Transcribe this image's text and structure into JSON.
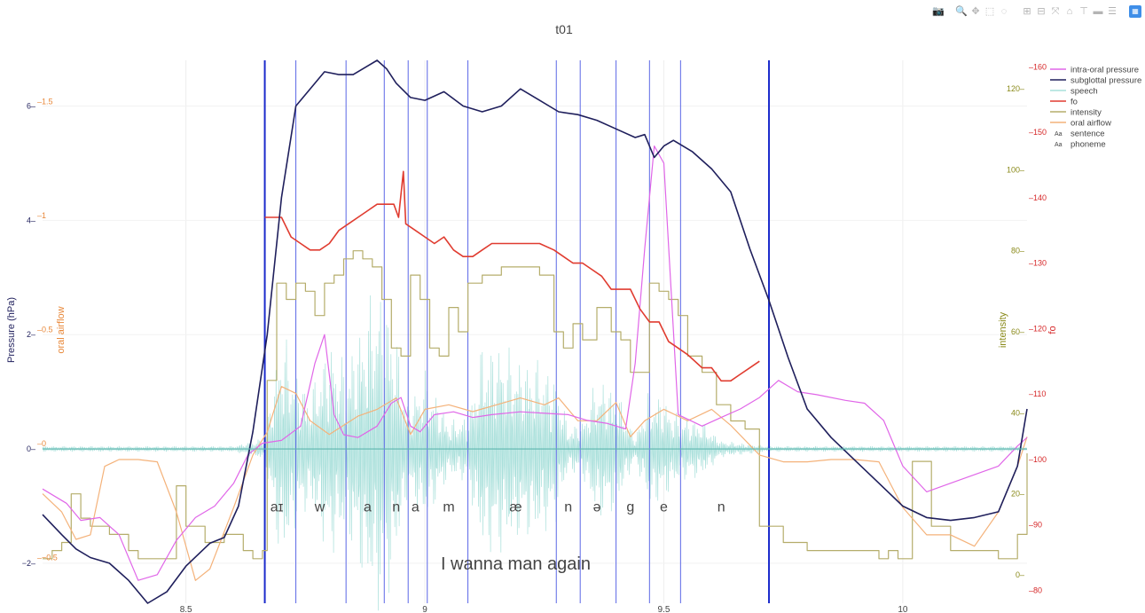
{
  "title": "t01",
  "modebar": [
    {
      "name": "camera-icon",
      "glyph": "📷"
    },
    {
      "name": "zoom-icon",
      "glyph": "🔍"
    },
    {
      "name": "pan-icon",
      "glyph": "✥"
    },
    {
      "name": "box-select-icon",
      "glyph": "⬚"
    },
    {
      "name": "lasso-select-icon",
      "glyph": "◌"
    },
    {
      "name": "zoom-in-icon",
      "glyph": "⊞"
    },
    {
      "name": "zoom-out-icon",
      "glyph": "⊟"
    },
    {
      "name": "autoscale-icon",
      "glyph": "⤧"
    },
    {
      "name": "reset-axes-icon",
      "glyph": "⌂"
    },
    {
      "name": "spike-lines-icon",
      "glyph": "⊤"
    },
    {
      "name": "hover-closest-icon",
      "glyph": "▬"
    },
    {
      "name": "hover-compare-icon",
      "glyph": "☰"
    },
    {
      "name": "plotly-logo-icon",
      "glyph": "▦"
    }
  ],
  "chart_data": {
    "type": "line",
    "title": "t01",
    "grid": true,
    "legend_position": "top-right",
    "x_axis": {
      "range": [
        8.2,
        10.26
      ],
      "ticks": [
        8.5,
        9,
        9.5,
        10
      ],
      "tick_labels": [
        "8.5",
        "9",
        "9.5",
        "10"
      ]
    },
    "y_axes": {
      "pressure": {
        "label": "Pressure (hPa)",
        "range": [
          -2.7,
          6.8
        ],
        "ticks": [
          -2,
          0,
          2,
          4,
          6
        ],
        "tick_labels": [
          "−2",
          "0",
          "2",
          "4",
          "6"
        ],
        "color": "#1f1f5c"
      },
      "oral_airflow": {
        "label": "oral airflow",
        "range": [
          -0.7,
          1.68
        ],
        "ticks": [
          -0.5,
          0,
          0.5,
          1,
          1.5
        ],
        "tick_labels": [
          "−0.5",
          "0",
          "0.5",
          "1",
          "1.5"
        ],
        "color": "#e8883a"
      },
      "intensity": {
        "label": "intensity",
        "range": [
          -7,
          127
        ],
        "ticks": [
          0,
          20,
          40,
          60,
          80,
          100,
          120
        ],
        "tick_labels": [
          "0",
          "20",
          "40",
          "60",
          "80",
          "100",
          "120"
        ],
        "color": "#8a8a1a"
      },
      "fo": {
        "label": "fo",
        "range": [
          78,
          161
        ],
        "ticks": [
          80,
          90,
          100,
          110,
          120,
          130,
          140,
          150,
          160
        ],
        "tick_labels": [
          "80",
          "90",
          "100",
          "110",
          "120",
          "130",
          "140",
          "150",
          "160"
        ],
        "color": "#d62728"
      }
    },
    "legend": [
      {
        "name": "intra-oral pressure",
        "color": "#e066e8",
        "kind": "line"
      },
      {
        "name": "subglottal pressure",
        "color": "#1f1f5c",
        "kind": "line"
      },
      {
        "name": "speech",
        "color": "#a8e0dc",
        "kind": "line"
      },
      {
        "name": "fo",
        "color": "#e03c30",
        "kind": "line"
      },
      {
        "name": "intensity",
        "color": "#b5ad6b",
        "kind": "line"
      },
      {
        "name": "oral airflow",
        "color": "#f4b27a",
        "kind": "line"
      },
      {
        "name": "sentence",
        "color": "#444444",
        "kind": "text",
        "glyph": "Aa"
      },
      {
        "name": "phoneme",
        "color": "#444444",
        "kind": "text",
        "glyph": "Aa"
      }
    ],
    "sentence": {
      "text": "I wanna man again",
      "x": 9.19,
      "y_pressure": -2.0
    },
    "phonemes": [
      {
        "label": "aɪ",
        "x": 8.69
      },
      {
        "label": "w",
        "x": 8.78
      },
      {
        "label": "a",
        "x": 8.88
      },
      {
        "label": "n",
        "x": 8.94
      },
      {
        "label": "a",
        "x": 8.98
      },
      {
        "label": "m",
        "x": 9.05
      },
      {
        "label": "æ",
        "x": 9.19
      },
      {
        "label": "n",
        "x": 9.3
      },
      {
        "label": "ə",
        "x": 9.36
      },
      {
        "label": "g",
        "x": 9.43
      },
      {
        "label": "e",
        "x": 9.5
      },
      {
        "label": "n",
        "x": 9.62
      }
    ],
    "phoneme_y_pressure": -1.0,
    "sentence_boundaries": [
      8.665,
      9.72
    ],
    "phoneme_boundaries": [
      8.73,
      8.835,
      8.915,
      8.965,
      9.005,
      9.09,
      9.275,
      9.325,
      9.4,
      9.47,
      9.535
    ],
    "series": {
      "subglottal_pressure": {
        "axis": "pressure",
        "x": [
          8.2,
          8.24,
          8.27,
          8.3,
          8.34,
          8.38,
          8.42,
          8.46,
          8.5,
          8.55,
          8.58,
          8.61,
          8.64,
          8.67,
          8.7,
          8.73,
          8.76,
          8.79,
          8.82,
          8.85,
          8.88,
          8.9,
          8.92,
          8.94,
          8.97,
          9.0,
          9.04,
          9.08,
          9.12,
          9.16,
          9.2,
          9.24,
          9.28,
          9.32,
          9.36,
          9.4,
          9.44,
          9.46,
          9.48,
          9.5,
          9.52,
          9.56,
          9.6,
          9.64,
          9.68,
          9.72,
          9.76,
          9.8,
          9.85,
          9.9,
          9.95,
          10.0,
          10.05,
          10.1,
          10.15,
          10.2,
          10.24,
          10.26
        ],
        "y": [
          -1.15,
          -1.5,
          -1.75,
          -1.9,
          -2.0,
          -2.3,
          -2.7,
          -2.5,
          -2.05,
          -1.65,
          -1.55,
          -1.0,
          0.3,
          2.0,
          4.4,
          6.0,
          6.3,
          6.6,
          6.55,
          6.55,
          6.7,
          6.8,
          6.65,
          6.4,
          6.15,
          6.1,
          6.25,
          6.0,
          5.9,
          6.0,
          6.3,
          6.1,
          5.9,
          5.85,
          5.75,
          5.6,
          5.45,
          5.5,
          5.1,
          5.3,
          5.4,
          5.2,
          4.9,
          4.5,
          3.5,
          2.6,
          1.6,
          0.7,
          0.2,
          -0.2,
          -0.6,
          -1.0,
          -1.2,
          -1.25,
          -1.2,
          -1.1,
          -0.3,
          0.7
        ]
      },
      "intra_oral_pressure": {
        "axis": "pressure",
        "x": [
          8.2,
          8.25,
          8.28,
          8.32,
          8.36,
          8.4,
          8.44,
          8.48,
          8.52,
          8.56,
          8.6,
          8.63,
          8.66,
          8.7,
          8.74,
          8.77,
          8.79,
          8.81,
          8.83,
          8.86,
          8.9,
          8.93,
          8.95,
          8.97,
          8.99,
          9.02,
          9.06,
          9.1,
          9.14,
          9.2,
          9.26,
          9.3,
          9.34,
          9.38,
          9.42,
          9.44,
          9.46,
          9.48,
          9.5,
          9.53,
          9.58,
          9.62,
          9.66,
          9.7,
          9.74,
          9.78,
          9.82,
          9.88,
          9.92,
          9.96,
          10.0,
          10.05,
          10.1,
          10.15,
          10.2,
          10.24,
          10.26
        ],
        "y": [
          -0.7,
          -0.95,
          -1.25,
          -1.2,
          -1.5,
          -2.3,
          -2.2,
          -1.6,
          -1.2,
          -1.0,
          -0.6,
          -0.1,
          0.1,
          0.15,
          0.4,
          1.5,
          2.0,
          0.6,
          0.25,
          0.2,
          0.4,
          0.8,
          0.9,
          0.4,
          0.3,
          0.6,
          0.65,
          0.55,
          0.6,
          0.65,
          0.62,
          0.6,
          0.5,
          0.45,
          0.35,
          1.5,
          3.5,
          5.3,
          5.0,
          0.6,
          0.4,
          0.55,
          0.7,
          0.9,
          1.2,
          1.0,
          0.95,
          0.85,
          0.8,
          0.5,
          -0.3,
          -0.75,
          -0.6,
          -0.45,
          -0.3,
          0.05,
          0.2
        ]
      },
      "oral_airflow": {
        "axis": "oral_airflow",
        "x": [
          8.2,
          8.24,
          8.27,
          8.3,
          8.33,
          8.36,
          8.4,
          8.44,
          8.48,
          8.52,
          8.55,
          8.6,
          8.64,
          8.67,
          8.7,
          8.73,
          8.76,
          8.8,
          8.83,
          8.86,
          8.9,
          8.94,
          8.97,
          9.0,
          9.05,
          9.1,
          9.15,
          9.2,
          9.25,
          9.28,
          9.32,
          9.36,
          9.4,
          9.43,
          9.46,
          9.5,
          9.55,
          9.6,
          9.64,
          9.7,
          9.75,
          9.8,
          9.85,
          9.9,
          9.95,
          9.98,
          10.0,
          10.05,
          10.1,
          10.15,
          10.2,
          10.24,
          10.26
        ],
        "y": [
          -0.22,
          -0.3,
          -0.42,
          -0.4,
          -0.1,
          -0.07,
          -0.07,
          -0.08,
          -0.3,
          -0.6,
          -0.55,
          -0.28,
          -0.05,
          0.05,
          0.25,
          0.22,
          0.1,
          0.04,
          0.08,
          0.12,
          0.15,
          0.2,
          0.04,
          0.15,
          0.17,
          0.14,
          0.17,
          0.2,
          0.17,
          0.2,
          0.1,
          0.1,
          0.18,
          0.03,
          0.1,
          0.15,
          0.1,
          0.15,
          0.08,
          -0.05,
          -0.08,
          -0.08,
          -0.07,
          -0.07,
          -0.08,
          -0.2,
          -0.28,
          -0.4,
          -0.4,
          -0.45,
          -0.3,
          -0.1,
          0.03
        ]
      },
      "intensity": {
        "axis": "intensity",
        "x": [
          8.2,
          8.22,
          8.24,
          8.26,
          8.28,
          8.3,
          8.34,
          8.38,
          8.4,
          8.42,
          8.44,
          8.46,
          8.48,
          8.5,
          8.54,
          8.58,
          8.62,
          8.64,
          8.66,
          8.67,
          8.69,
          8.71,
          8.73,
          8.75,
          8.77,
          8.79,
          8.81,
          8.83,
          8.85,
          8.87,
          8.89,
          8.91,
          8.93,
          8.95,
          8.97,
          8.99,
          9.01,
          9.03,
          9.05,
          9.07,
          9.09,
          9.12,
          9.16,
          9.2,
          9.24,
          9.27,
          9.29,
          9.31,
          9.33,
          9.36,
          9.39,
          9.41,
          9.43,
          9.45,
          9.47,
          9.49,
          9.51,
          9.53,
          9.55,
          9.58,
          9.61,
          9.64,
          9.67,
          9.7,
          9.75,
          9.8,
          9.85,
          9.9,
          9.95,
          9.97,
          9.99,
          10.02,
          10.06,
          10.1,
          10.15,
          10.2,
          10.24,
          10.26
        ],
        "y": [
          4,
          6,
          8,
          20,
          14,
          12,
          10,
          6,
          4,
          4,
          4,
          4,
          22,
          12,
          8,
          10,
          6,
          4,
          6,
          48,
          72,
          68,
          72,
          70,
          64,
          72,
          74,
          78,
          80,
          78,
          76,
          68,
          56,
          54,
          74,
          68,
          56,
          54,
          66,
          60,
          72,
          74,
          76,
          76,
          74,
          60,
          56,
          62,
          58,
          66,
          60,
          58,
          50,
          50,
          72,
          70,
          68,
          64,
          54,
          50,
          42,
          38,
          36,
          12,
          8,
          6,
          6,
          6,
          4,
          6,
          4,
          28,
          12,
          6,
          6,
          4,
          10,
          30
        ]
      },
      "fo": {
        "axis": "fo",
        "x": [
          8.665,
          8.7,
          8.72,
          8.74,
          8.76,
          8.78,
          8.8,
          8.82,
          8.84,
          8.86,
          8.88,
          8.9,
          8.92,
          8.935,
          8.945,
          8.955,
          8.96,
          8.98,
          9.0,
          9.02,
          9.04,
          9.06,
          9.08,
          9.1,
          9.12,
          9.14,
          9.16,
          9.2,
          9.24,
          9.27,
          9.29,
          9.31,
          9.33,
          9.35,
          9.37,
          9.39,
          9.41,
          9.43,
          9.45,
          9.47,
          9.49,
          9.51,
          9.53,
          9.55,
          9.58,
          9.6,
          9.62,
          9.64,
          9.66,
          9.68,
          9.7
        ],
        "y": [
          137,
          137,
          134,
          133,
          132,
          132,
          133,
          135,
          136,
          137,
          138,
          139,
          139,
          139,
          137,
          144,
          136,
          135,
          134,
          133,
          134,
          132,
          131,
          131,
          132,
          133,
          133,
          133,
          133,
          132,
          131,
          130,
          130,
          129,
          128,
          126,
          126,
          126,
          123,
          121,
          121,
          118,
          117,
          116,
          114,
          114,
          112,
          112,
          113,
          114,
          115
        ]
      },
      "speech": {
        "axis": "pressure",
        "x_start": 8.2,
        "x_end": 10.26,
        "envelope": [
          [
            8.2,
            0.05
          ],
          [
            8.6,
            0.05
          ],
          [
            8.665,
            0.2
          ],
          [
            8.7,
            2.2
          ],
          [
            8.73,
            1.4
          ],
          [
            8.76,
            1.0
          ],
          [
            8.8,
            2.0
          ],
          [
            8.835,
            1.5
          ],
          [
            8.88,
            2.6
          ],
          [
            8.9,
            3.0
          ],
          [
            8.93,
            2.5
          ],
          [
            8.965,
            0.8
          ],
          [
            9.0,
            1.4
          ],
          [
            9.05,
            0.5
          ],
          [
            9.09,
            0.6
          ],
          [
            9.12,
            1.9
          ],
          [
            9.16,
            1.9
          ],
          [
            9.2,
            1.6
          ],
          [
            9.24,
            1.6
          ],
          [
            9.275,
            1.3
          ],
          [
            9.3,
            0.4
          ],
          [
            9.33,
            0.5
          ],
          [
            9.36,
            1.3
          ],
          [
            9.4,
            1.1
          ],
          [
            9.44,
            0.2
          ],
          [
            9.47,
            1.1
          ],
          [
            9.5,
            0.9
          ],
          [
            9.53,
            0.6
          ],
          [
            9.58,
            0.5
          ],
          [
            9.62,
            0.15
          ],
          [
            9.72,
            0.05
          ],
          [
            10.26,
            0.05
          ]
        ]
      }
    }
  }
}
